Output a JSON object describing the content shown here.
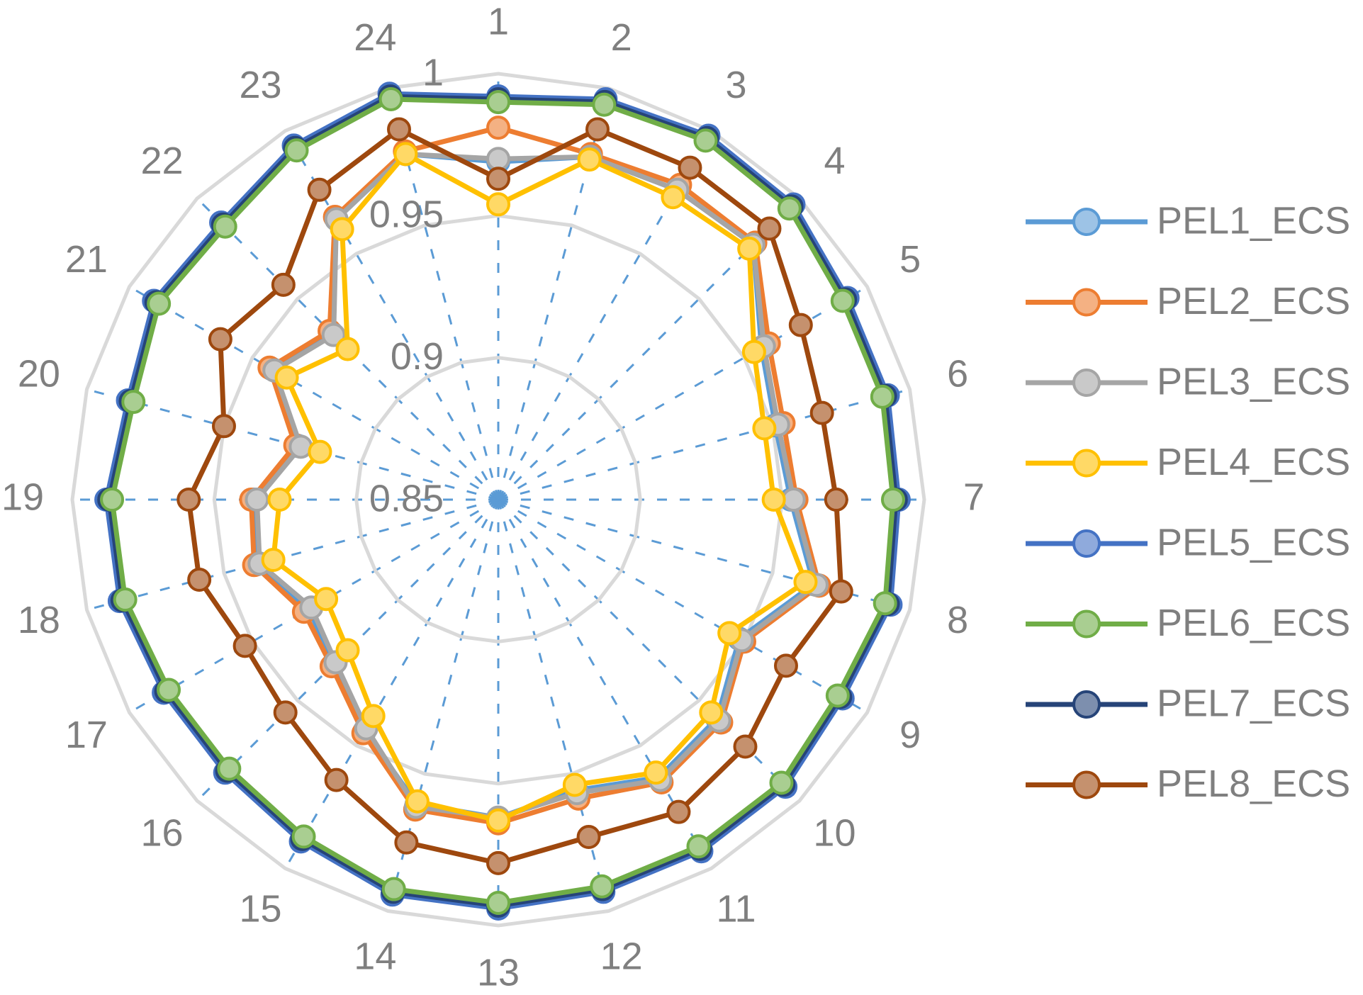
{
  "chart_data": {
    "type": "radar",
    "categories": [
      "1",
      "2",
      "3",
      "4",
      "5",
      "6",
      "7",
      "8",
      "9",
      "10",
      "11",
      "12",
      "13",
      "14",
      "15",
      "16",
      "17",
      "18",
      "19",
      "20",
      "21",
      "22",
      "23",
      "24"
    ],
    "rlim": [
      0.85,
      1
    ],
    "rticks": [
      0.85,
      0.9,
      0.95,
      1
    ],
    "grid": true,
    "legend": "right",
    "series": [
      {
        "name": "PEL1_ECS",
        "color": "#5b9bd5",
        "values": [
          0.969,
          0.975,
          0.976,
          0.977,
          0.957,
          0.951,
          0.953,
          0.965,
          0.948,
          0.959,
          0.963,
          0.956,
          0.962,
          0.961,
          0.944,
          0.932,
          0.927,
          0.938,
          0.936,
          0.923,
          0.942,
          0.933,
          0.964,
          0.976
        ]
      },
      {
        "name": "PEL2_ECS",
        "color": "#ed7d31",
        "values": [
          0.981,
          0.976,
          0.978,
          0.978,
          0.96,
          0.954,
          0.955,
          0.967,
          0.95,
          0.961,
          0.965,
          0.959,
          0.964,
          0.963,
          0.945,
          0.933,
          0.929,
          0.939,
          0.937,
          0.924,
          0.943,
          0.934,
          0.965,
          0.977
        ]
      },
      {
        "name": "PEL3_ECS",
        "color": "#a5a5a5",
        "values": [
          0.97,
          0.975,
          0.976,
          0.977,
          0.958,
          0.952,
          0.954,
          0.966,
          0.949,
          0.96,
          0.964,
          0.957,
          0.962,
          0.962,
          0.943,
          0.931,
          0.926,
          0.937,
          0.935,
          0.922,
          0.941,
          0.932,
          0.964,
          0.976
        ]
      },
      {
        "name": "PEL4_ECS",
        "color": "#ffc000",
        "values": [
          0.954,
          0.974,
          0.973,
          0.975,
          0.954,
          0.947,
          0.947,
          0.962,
          0.944,
          0.956,
          0.961,
          0.954,
          0.963,
          0.96,
          0.938,
          0.925,
          0.92,
          0.932,
          0.927,
          0.915,
          0.936,
          0.925,
          0.96,
          0.976
        ]
      },
      {
        "name": "PEL5_ECS",
        "color": "#4472c4",
        "values": [
          0.992,
          0.996,
          0.998,
          0.997,
          0.992,
          0.992,
          0.991,
          0.993,
          0.99,
          0.993,
          0.993,
          0.993,
          0.994,
          0.994,
          0.989,
          0.986,
          0.986,
          0.988,
          0.988,
          0.985,
          0.99,
          0.988,
          0.994,
          0.998
        ]
      },
      {
        "name": "PEL6_ECS",
        "color": "#70ad47",
        "values": [
          0.99,
          0.994,
          0.996,
          0.995,
          0.99,
          0.99,
          0.989,
          0.991,
          0.988,
          0.991,
          0.991,
          0.991,
          0.992,
          0.992,
          0.987,
          0.984,
          0.984,
          0.986,
          0.986,
          0.983,
          0.988,
          0.986,
          0.992,
          0.996
        ]
      },
      {
        "name": "PEL7_ECS",
        "color": "#264478",
        "values": [
          0.991,
          0.995,
          0.997,
          0.996,
          0.991,
          0.991,
          0.99,
          0.992,
          0.989,
          0.992,
          0.992,
          0.992,
          0.993,
          0.993,
          0.988,
          0.985,
          0.985,
          0.987,
          0.987,
          0.984,
          0.989,
          0.987,
          0.993,
          0.997
        ]
      },
      {
        "name": "PEL8_ECS",
        "color": "#9e480e",
        "values": [
          0.963,
          0.985,
          0.985,
          0.985,
          0.973,
          0.968,
          0.969,
          0.975,
          0.967,
          0.973,
          0.977,
          0.973,
          0.978,
          0.975,
          0.964,
          0.956,
          0.953,
          0.959,
          0.959,
          0.95,
          0.963,
          0.957,
          0.976,
          0.985
        ]
      }
    ]
  }
}
